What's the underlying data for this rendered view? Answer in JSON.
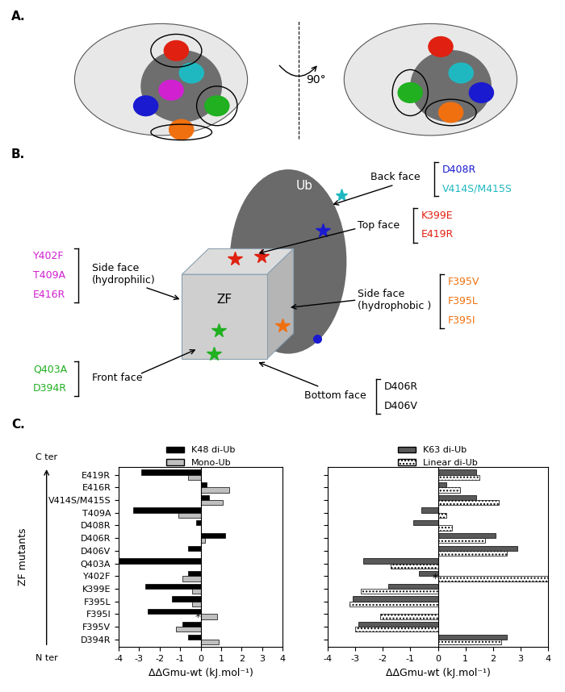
{
  "panel_labels": [
    "A.",
    "B.",
    "C."
  ],
  "panel_a": {
    "rotation_label": "90°"
  },
  "panel_b": {
    "ub_label": "Ub",
    "zf_label": "ZF",
    "faces": [
      {
        "label": "Back face",
        "mutants": [
          {
            "name": "D408R",
            "color": "#1a1ad0"
          },
          {
            "name": "V414S/M415S",
            "color": "#20b8c0"
          }
        ]
      },
      {
        "label": "Top face",
        "mutants": [
          {
            "name": "K399E",
            "color": "#e02010"
          },
          {
            "name": "E419R",
            "color": "#e02010"
          }
        ]
      },
      {
        "label": "Side face\n(hydrophilic)",
        "mutants": [
          {
            "name": "Y402F",
            "color": "#d020d0"
          },
          {
            "name": "T409A",
            "color": "#d020d0"
          },
          {
            "name": "E416R",
            "color": "#d020d0"
          }
        ]
      },
      {
        "label": "Side face\n(hydrophobic )",
        "mutants": [
          {
            "name": "F395V",
            "color": "#f07010"
          },
          {
            "name": "F395L",
            "color": "#f07010"
          },
          {
            "name": "F395I",
            "color": "#f07010"
          }
        ]
      },
      {
        "label": "Front face",
        "mutants": [
          {
            "name": "Q403A",
            "color": "#20b020"
          },
          {
            "name": "D394R",
            "color": "#20b020"
          }
        ]
      },
      {
        "label": "Bottom face",
        "mutants": [
          {
            "name": "D406R",
            "color": "#000000"
          },
          {
            "name": "D406V",
            "color": "#000000"
          }
        ]
      }
    ]
  },
  "chart_data": [
    {
      "type": "bar",
      "orientation": "horizontal",
      "categories": [
        "D394R",
        "F395V",
        "F395I",
        "F395L",
        "K399E",
        "Y402F",
        "Q403A",
        "D406V",
        "D406R",
        "D408R",
        "T409A",
        "V414S/M415S",
        "E416R",
        "E419R"
      ],
      "series": [
        {
          "name": "K48 di-Ub",
          "color": "#000000",
          "values": [
            -0.6,
            -0.9,
            -2.6,
            -1.4,
            -2.7,
            -0.6,
            -4.0,
            -0.6,
            1.2,
            -0.2,
            -3.3,
            0.4,
            0.3,
            -2.9
          ]
        },
        {
          "name": "Mono-Ub",
          "color": "#bfbfbf",
          "values": [
            0.9,
            -1.2,
            0.8,
            -0.4,
            -0.4,
            -0.9,
            null,
            null,
            0.2,
            null,
            -1.1,
            1.1,
            1.4,
            -0.6
          ]
        }
      ],
      "xlabel": "ΔΔGmu-wt (kJ.mol⁻¹)",
      "ylabel": "ZF mutants",
      "y_end_labels": [
        "N ter",
        "C ter"
      ],
      "xlim": [
        -4,
        4
      ],
      "xticks": [
        -4,
        -3,
        -2,
        -1,
        0,
        1,
        2,
        3,
        4
      ],
      "legend": "upper center",
      "tick_labels": true,
      "annotations": [
        {
          "text": "*",
          "category": "F395I",
          "series": "Mono-Ub"
        }
      ]
    },
    {
      "type": "bar",
      "orientation": "horizontal",
      "categories": [
        "D394R",
        "F395V",
        "F395I",
        "F395L",
        "K399E",
        "Y402F",
        "Q403A",
        "D406V",
        "D406R",
        "D408R",
        "T409A",
        "V414S/M415S",
        "E416R",
        "E419R"
      ],
      "series": [
        {
          "name": "K63 di-Ub",
          "color": "#595959",
          "values": [
            2.5,
            -2.9,
            null,
            -3.1,
            -1.8,
            -0.7,
            -2.7,
            2.9,
            2.1,
            -0.9,
            -0.6,
            1.4,
            0.3,
            1.4
          ]
        },
        {
          "name": "Linear di-Ub",
          "color": "#ffffff",
          "values": [
            2.3,
            -3.0,
            -2.1,
            -3.2,
            -2.8,
            4.0,
            -1.7,
            2.5,
            1.7,
            0.5,
            0.3,
            2.2,
            0.8,
            1.5
          ]
        }
      ],
      "xlabel": "ΔΔGmu-wt (kJ.mol⁻¹)",
      "xlim": [
        -4,
        4
      ],
      "xticks": [
        -4,
        -3,
        -2,
        -1,
        0,
        1,
        2,
        3,
        4
      ],
      "legend": "upper center",
      "tick_labels": "x",
      "annotations": [
        {
          "text": "*",
          "category": "Y402F",
          "series": "Linear di-Ub"
        }
      ]
    }
  ]
}
